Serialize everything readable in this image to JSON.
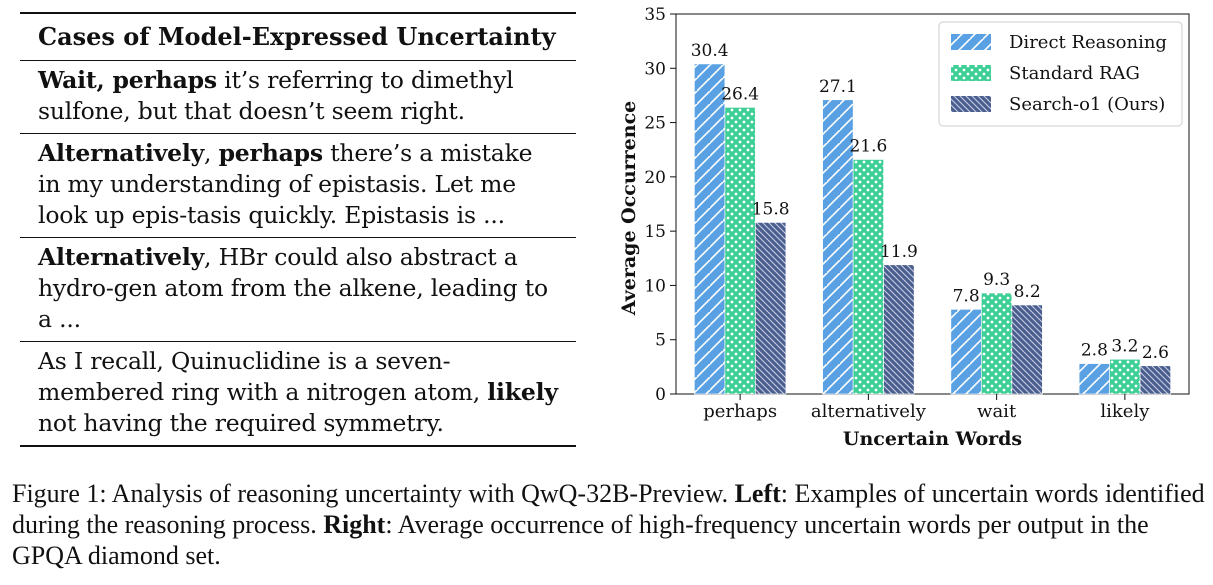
{
  "table": {
    "title": "Cases of Model-Expressed Uncertainty",
    "rows": [
      [
        {
          "text": "Wait, perhaps",
          "bold": true
        },
        {
          "text": " it’s referring to dimethyl sulfone, but that doesn’t seem right.",
          "bold": false
        }
      ],
      [
        {
          "text": "Alternatively",
          "bold": true
        },
        {
          "text": ", ",
          "bold": false
        },
        {
          "text": "perhaps",
          "bold": true
        },
        {
          "text": " there’s a mistake in my understanding of epistasis. Let me look up epis-tasis quickly. Epistasis is ...",
          "bold": false
        }
      ],
      [
        {
          "text": "Alternatively",
          "bold": true
        },
        {
          "text": ", HBr could also abstract a hydro-gen atom from the alkene, leading to a ...",
          "bold": false
        }
      ],
      [
        {
          "text": "As I recall, Quinuclidine is a seven-membered ring with a nitrogen atom, ",
          "bold": false
        },
        {
          "text": "likely",
          "bold": true
        },
        {
          "text": " not having the required symmetry.",
          "bold": false
        }
      ]
    ]
  },
  "chart_data": {
    "type": "bar",
    "title": "",
    "xlabel": "Uncertain Words",
    "ylabel": "Average Occurrence",
    "ylim": [
      0,
      35
    ],
    "yticks": [
      0,
      5,
      10,
      15,
      20,
      25,
      30,
      35
    ],
    "categories": [
      "perhaps",
      "alternatively",
      "wait",
      "likely"
    ],
    "series": [
      {
        "name": "Direct Reasoning",
        "values": [
          30.4,
          27.1,
          7.8,
          2.8
        ],
        "color": "#5aa1e3",
        "pattern": "diagonal"
      },
      {
        "name": "Standard RAG",
        "values": [
          26.4,
          21.6,
          9.3,
          3.2
        ],
        "color": "#3ecf96",
        "pattern": "dots"
      },
      {
        "name": "Search-o1 (Ours)",
        "values": [
          15.8,
          11.9,
          8.2,
          2.6
        ],
        "color": "#4a5d8f",
        "pattern": "backslash"
      }
    ],
    "data_labels": true,
    "legend_position": "top-right",
    "grid": false
  },
  "caption": [
    {
      "text": "Figure 1: Analysis of reasoning uncertainty with QwQ-32B-Preview. ",
      "bold": false
    },
    {
      "text": "Left",
      "bold": true
    },
    {
      "text": ": Examples of uncertain words identified during the reasoning process. ",
      "bold": false
    },
    {
      "text": "Right",
      "bold": true
    },
    {
      "text": ": Average occurrence of high-frequency uncertain words per output in the GPQA diamond set.",
      "bold": false
    }
  ]
}
